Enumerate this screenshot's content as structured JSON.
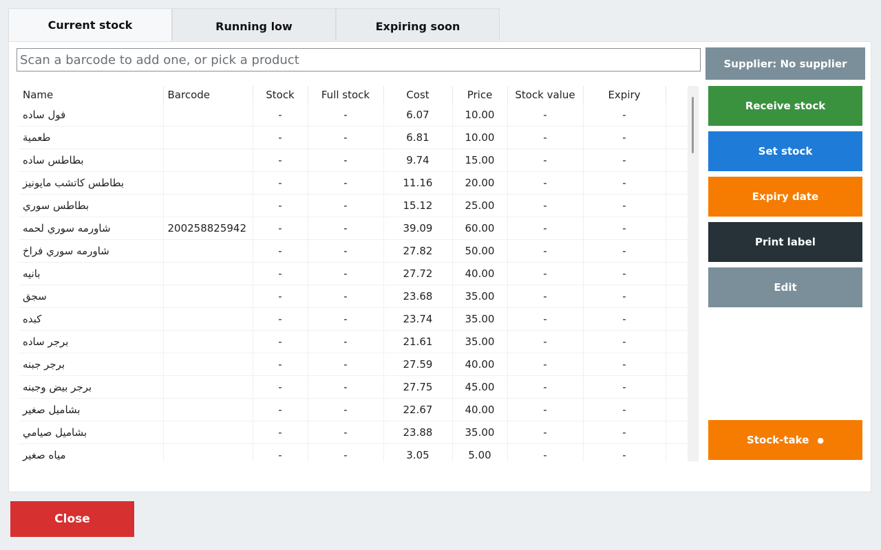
{
  "tabs": [
    {
      "label": "Current stock",
      "active": true
    },
    {
      "label": "Running low",
      "active": false
    },
    {
      "label": "Expiring soon",
      "active": false
    }
  ],
  "search": {
    "placeholder": "Scan a barcode to add one, or pick a product",
    "value": ""
  },
  "table": {
    "columns": [
      "Name",
      "Barcode",
      "Stock",
      "Full stock",
      "Cost",
      "Price",
      "Stock value",
      "Expiry"
    ],
    "rows": [
      {
        "name": "فول ساده",
        "barcode": "",
        "stock": "-",
        "full_stock": "-",
        "cost": "6.07",
        "price": "10.00",
        "stock_value": "-",
        "expiry": "-"
      },
      {
        "name": "طعمية",
        "barcode": "",
        "stock": "-",
        "full_stock": "-",
        "cost": "6.81",
        "price": "10.00",
        "stock_value": "-",
        "expiry": "-"
      },
      {
        "name": "بطاطس ساده",
        "barcode": "",
        "stock": "-",
        "full_stock": "-",
        "cost": "9.74",
        "price": "15.00",
        "stock_value": "-",
        "expiry": "-"
      },
      {
        "name": "بطاطس كاتشب مايونيز",
        "barcode": "",
        "stock": "-",
        "full_stock": "-",
        "cost": "11.16",
        "price": "20.00",
        "stock_value": "-",
        "expiry": "-"
      },
      {
        "name": "بطاطس سوري",
        "barcode": "",
        "stock": "-",
        "full_stock": "-",
        "cost": "15.12",
        "price": "25.00",
        "stock_value": "-",
        "expiry": "-"
      },
      {
        "name": "شاورمه سوري لحمه",
        "barcode": "200258825942",
        "stock": "-",
        "full_stock": "-",
        "cost": "39.09",
        "price": "60.00",
        "stock_value": "-",
        "expiry": "-"
      },
      {
        "name": "شاورمه سوري فراخ",
        "barcode": "",
        "stock": "-",
        "full_stock": "-",
        "cost": "27.82",
        "price": "50.00",
        "stock_value": "-",
        "expiry": "-"
      },
      {
        "name": "بانيه",
        "barcode": "",
        "stock": "-",
        "full_stock": "-",
        "cost": "27.72",
        "price": "40.00",
        "stock_value": "-",
        "expiry": "-"
      },
      {
        "name": "سجق",
        "barcode": "",
        "stock": "-",
        "full_stock": "-",
        "cost": "23.68",
        "price": "35.00",
        "stock_value": "-",
        "expiry": "-"
      },
      {
        "name": "كبده",
        "barcode": "",
        "stock": "-",
        "full_stock": "-",
        "cost": "23.74",
        "price": "35.00",
        "stock_value": "-",
        "expiry": "-"
      },
      {
        "name": "برجر ساده",
        "barcode": "",
        "stock": "-",
        "full_stock": "-",
        "cost": "21.61",
        "price": "35.00",
        "stock_value": "-",
        "expiry": "-"
      },
      {
        "name": "برجر جبنه",
        "barcode": "",
        "stock": "-",
        "full_stock": "-",
        "cost": "27.59",
        "price": "40.00",
        "stock_value": "-",
        "expiry": "-"
      },
      {
        "name": "برجر بيض وجبنه",
        "barcode": "",
        "stock": "-",
        "full_stock": "-",
        "cost": "27.75",
        "price": "45.00",
        "stock_value": "-",
        "expiry": "-"
      },
      {
        "name": "بشاميل صغير",
        "barcode": "",
        "stock": "-",
        "full_stock": "-",
        "cost": "22.67",
        "price": "40.00",
        "stock_value": "-",
        "expiry": "-"
      },
      {
        "name": "بشاميل صيامي",
        "barcode": "",
        "stock": "-",
        "full_stock": "-",
        "cost": "23.88",
        "price": "35.00",
        "stock_value": "-",
        "expiry": "-"
      },
      {
        "name": "مياه صغير",
        "barcode": "",
        "stock": "-",
        "full_stock": "-",
        "cost": "3.05",
        "price": "5.00",
        "stock_value": "-",
        "expiry": "-"
      }
    ]
  },
  "sidebar": {
    "supplier_label": "Supplier: No supplier",
    "receive_label": "Receive stock",
    "set_stock_label": "Set stock",
    "expiry_label": "Expiry date",
    "print_label": "Print label",
    "edit_label": "Edit",
    "stocktake_label": "Stock-take",
    "stocktake_dot": "●"
  },
  "footer": {
    "close_label": "Close"
  },
  "colors": {
    "supplier": "#7a8f9a",
    "receive": "#3a923f",
    "set_stock": "#1e7bd8",
    "expiry": "#f57c00",
    "print": "#263238",
    "edit": "#7a8f9a",
    "stocktake": "#f57c00",
    "close": "#d63030"
  }
}
